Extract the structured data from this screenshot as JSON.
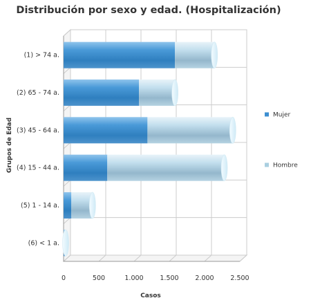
{
  "chart_data": {
    "type": "bar",
    "orientation": "horizontal",
    "stacked": true,
    "style": "3d-cylinder",
    "title": "Distribución por sexo y edad. (Hospitalización)",
    "xlabel": "Casos",
    "ylabel": "Grupos de Edad",
    "categories": [
      "(1) > 74 a.",
      "(2) 65 - 74 a.",
      "(3) 45 - 64 a.",
      "(4) 15 - 44 a.",
      "(5) 1 - 14 a.",
      "(6) < 1 a."
    ],
    "series": [
      {
        "name": "Mujer",
        "values": [
          1580,
          1070,
          1190,
          620,
          110,
          20
        ],
        "color": "#3d8fd1"
      },
      {
        "name": "Hombre",
        "values": [
          560,
          510,
          1210,
          1660,
          300,
          10
        ],
        "color": "#a9cfe0"
      }
    ],
    "xlim": [
      0,
      2500
    ],
    "xticks": [
      0,
      500,
      1000,
      1500,
      2000,
      2500
    ],
    "xtick_labels": [
      "0",
      "500",
      "1.000",
      "1.500",
      "2.000",
      "2.500"
    ],
    "grid": true,
    "legend_position": "right"
  }
}
